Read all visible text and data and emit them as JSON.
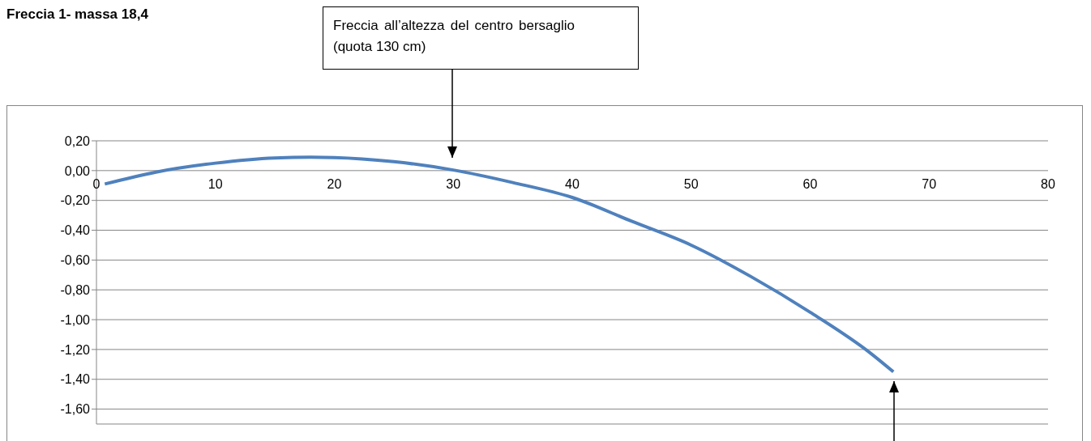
{
  "chart_data": {
    "type": "line",
    "title": "Freccia 1- massa 18,4",
    "x": [
      0.7,
      5,
      10,
      15,
      18,
      20,
      25,
      30,
      35,
      40,
      45,
      50,
      55,
      60,
      65,
      67
    ],
    "series": [
      {
        "color": "#4f81bd",
        "values": [
          -0.09,
          -0.01,
          0.05,
          0.085,
          0.09,
          0.088,
          0.06,
          0.004,
          -0.08,
          -0.18,
          -0.34,
          -0.5,
          -0.71,
          -0.95,
          -1.22,
          -1.35
        ]
      }
    ],
    "xlim": [
      0,
      80
    ],
    "xticks": [
      0,
      10,
      20,
      30,
      40,
      50,
      60,
      70,
      80
    ],
    "ylim": [
      -1.7,
      0.2
    ],
    "yticks": [
      {
        "value": 0.2,
        "label": "0,20"
      },
      {
        "value": 0,
        "label": "0,00"
      },
      {
        "value": -0.2,
        "label": "-0,20"
      },
      {
        "value": -0.4,
        "label": "-0,40"
      },
      {
        "value": -0.6,
        "label": "-0,60"
      },
      {
        "value": -0.8,
        "label": "-0,80"
      },
      {
        "value": -1,
        "label": "-1,00"
      },
      {
        "value": -1.2,
        "label": "-1,20"
      },
      {
        "value": -1.4,
        "label": "-1,40"
      },
      {
        "value": -1.6,
        "label": "-1,60"
      }
    ],
    "grid": "y",
    "marker": "none",
    "line_style": "solid",
    "annotations": [
      "Freccia all’altezza del centro bersaglio (quota 130 cm)"
    ]
  }
}
